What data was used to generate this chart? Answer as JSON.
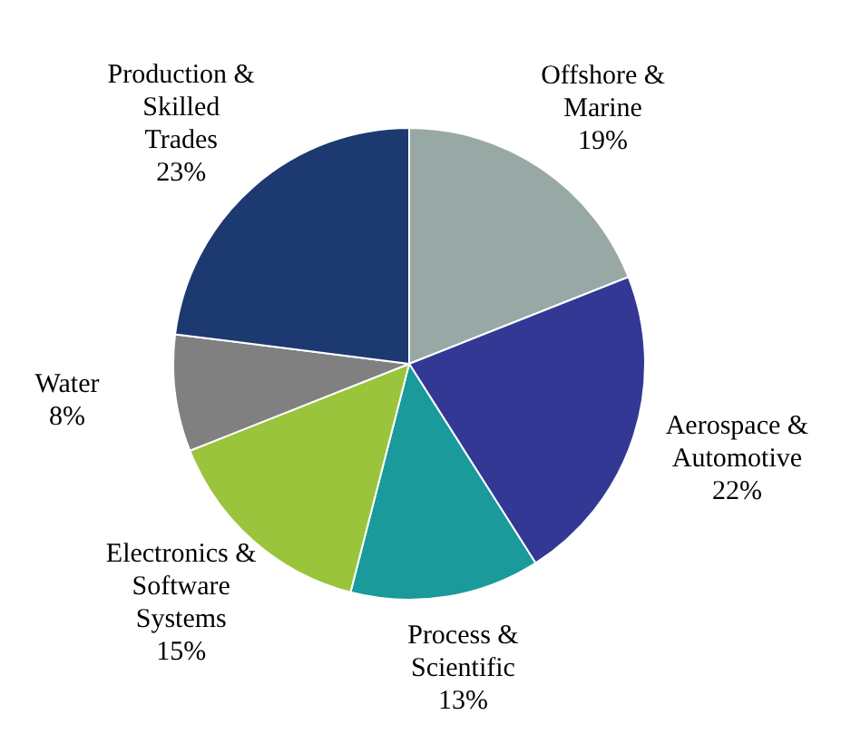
{
  "chart_data": {
    "type": "pie",
    "categories": [
      "Offshore & Marine",
      "Aerospace & Automotive",
      "Process & Scientific",
      "Electronics & Software Systems",
      "Water",
      "Production & Skilled Trades"
    ],
    "values": [
      19,
      22,
      13,
      15,
      8,
      23
    ],
    "value_labels": [
      "19%",
      "22%",
      "13%",
      "15%",
      "8%",
      "23%"
    ],
    "colors": [
      "#98a8a4",
      "#333895",
      "#1a9a9a",
      "#9ac43c",
      "#808080",
      "#1c3a70"
    ]
  }
}
